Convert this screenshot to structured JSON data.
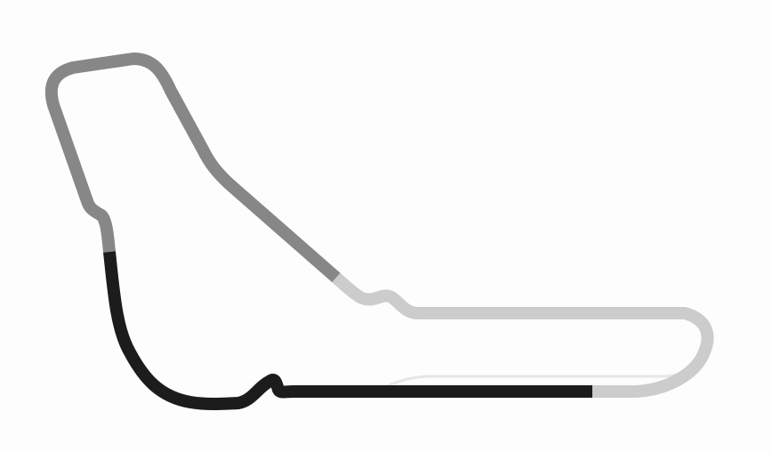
{
  "track": {
    "colors": {
      "background": "#fdfdfd",
      "sector_1": "#1c1c1c",
      "sector_2": "#cccccc",
      "sector_3": "#878787",
      "pit_lane": "#e6e6e6"
    }
  }
}
